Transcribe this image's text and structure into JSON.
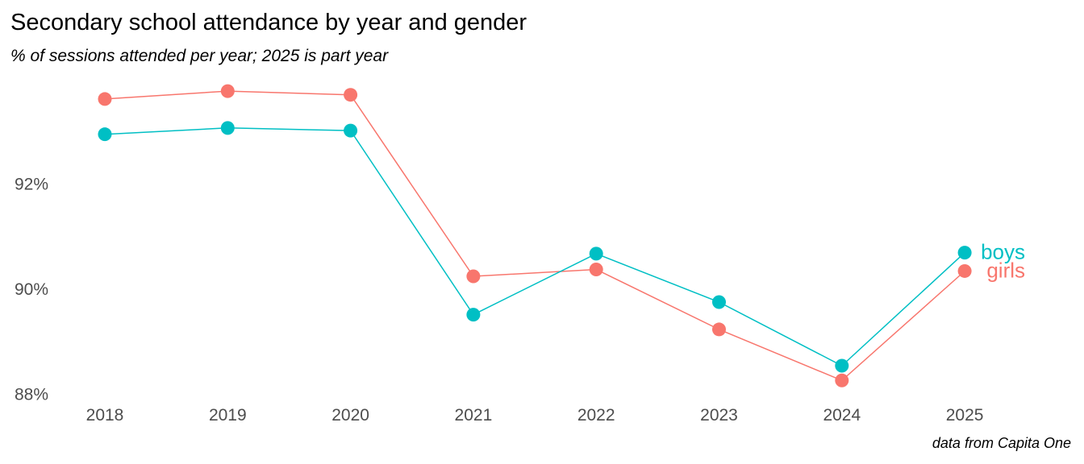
{
  "chart_data": {
    "type": "line",
    "title": "Secondary school attendance by year and gender",
    "subtitle": "% of sessions attended per year; 2025 is part year",
    "caption": "data from Capita One",
    "xlabel": "",
    "ylabel": "",
    "x": [
      "2018",
      "2019",
      "2020",
      "2021",
      "2022",
      "2023",
      "2024",
      "2025"
    ],
    "y_ticks": [
      88,
      90,
      92
    ],
    "y_tick_labels": [
      "88%",
      "90%",
      "92%"
    ],
    "ylim": [
      87.9,
      94.1
    ],
    "grid": false,
    "legend": "direct labels at right end of lines",
    "series": [
      {
        "name": "girls",
        "color": "#F8766D",
        "values": [
          93.6,
          93.75,
          93.68,
          90.23,
          90.36,
          89.22,
          88.25,
          90.33
        ]
      },
      {
        "name": "boys",
        "color": "#00BFC4",
        "values": [
          92.93,
          93.05,
          93.0,
          89.5,
          90.66,
          89.74,
          88.53,
          90.68
        ]
      }
    ]
  }
}
